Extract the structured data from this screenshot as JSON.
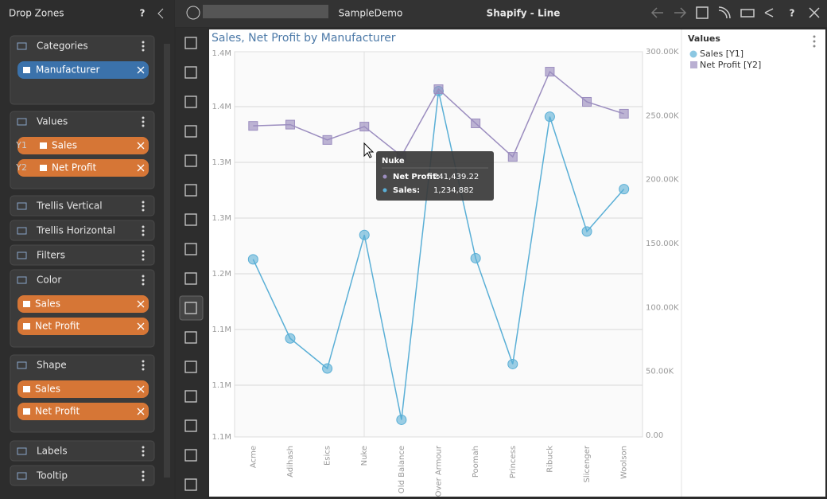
{
  "top_bar": {
    "app_title": "SampleDemo",
    "view_title": "Shapify - Line",
    "help": "?"
  },
  "drop_zones": {
    "title": "Drop Zones",
    "help": "?",
    "sections": [
      {
        "title": "Categories",
        "items": [
          {
            "label": "Manufacturer"
          }
        ]
      },
      {
        "title": "Values",
        "items": [
          {
            "axis": "Y1",
            "label": "Sales"
          },
          {
            "axis": "Y2",
            "label": "Net Profit"
          }
        ]
      },
      {
        "title": "Trellis Vertical",
        "items": []
      },
      {
        "title": "Trellis Horizontal",
        "items": []
      },
      {
        "title": "Filters",
        "items": []
      },
      {
        "title": "Color",
        "items": [
          {
            "label": "Sales"
          },
          {
            "label": "Net Profit"
          }
        ]
      },
      {
        "title": "Shape",
        "items": [
          {
            "label": "Sales"
          },
          {
            "label": "Net Profit"
          }
        ]
      },
      {
        "title": "Labels",
        "items": []
      },
      {
        "title": "Tooltip",
        "items": []
      }
    ]
  },
  "legend": {
    "title": "Values"
  },
  "tooltip": {
    "title": "Nuke",
    "rows": [
      {
        "label": "Net Profit:",
        "value": "241,439.22"
      },
      {
        "label": "Sales:",
        "value": "1,234,882"
      }
    ]
  },
  "chart_data": {
    "type": "line",
    "title": "Sales, Net Profit by Manufacturer",
    "categories": [
      "Acme",
      "Adihash",
      "Esics",
      "Nuke",
      "Old Balance",
      "Over Armour",
      "Poomah",
      "Princess",
      "Ribuck",
      "Slicenger",
      "Woolson"
    ],
    "series": [
      {
        "name": "Sales [Y1]",
        "color": "#5aafd6",
        "marker": "circle",
        "values": [
          1213000,
          1142000,
          1115000,
          1234882,
          1069000,
          1364000,
          1214000,
          1119000,
          1341000,
          1238000,
          1276000
        ]
      },
      {
        "name": "Net Profit [Y2]",
        "color": "#9b8dbf",
        "marker": "square",
        "axis": "y2",
        "values": [
          242000,
          243000,
          231000,
          241439.22,
          218500,
          270700,
          244000,
          217800,
          284400,
          260800,
          251500
        ]
      }
    ],
    "ylim": [
      1053600,
      1397900
    ],
    "yticks": [
      {
        "value": 1053600,
        "label": "1.1M"
      },
      {
        "value": 1100000,
        "label": "1.1M"
      },
      {
        "value": 1150000,
        "label": "1.1M"
      },
      {
        "value": 1200000,
        "label": "1.2M"
      },
      {
        "value": 1250000,
        "label": "1.3M"
      },
      {
        "value": 1300000,
        "label": "1.3M"
      },
      {
        "value": 1350000,
        "label": "1.4M"
      },
      {
        "value": 1397900,
        "label": "1.4M"
      }
    ],
    "y2lim": [
      0,
      300000
    ],
    "y2ticks": [
      {
        "value": 0,
        "label": "0.00"
      },
      {
        "value": 50000,
        "label": "50.00K"
      },
      {
        "value": 100000,
        "label": "100.00K"
      },
      {
        "value": 150000,
        "label": "150.00K"
      },
      {
        "value": 200000,
        "label": "200.00K"
      },
      {
        "value": 250000,
        "label": "250.00K"
      },
      {
        "value": 300000,
        "label": "300.00K"
      }
    ],
    "grid": true
  }
}
